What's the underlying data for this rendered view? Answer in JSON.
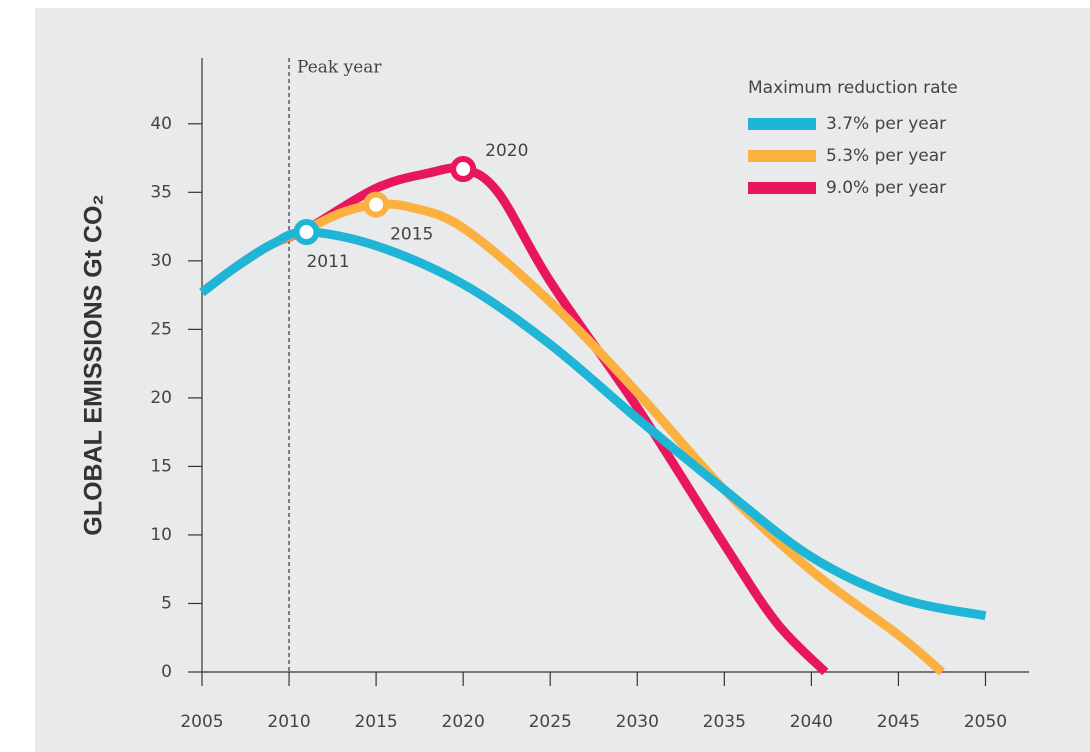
{
  "chart_data": {
    "type": "line",
    "y_label": "GLOBAL EMISSIONS Gt CO₂",
    "legend_title": "Maximum reduction rate",
    "legend": "top-right",
    "xlim": [
      2005,
      2052.5
    ],
    "ylim": [
      0,
      44.8
    ],
    "xticks": [
      2005,
      2010,
      2015,
      2020,
      2025,
      2030,
      2035,
      2040,
      2045,
      2050
    ],
    "yticks": [
      0,
      5,
      10,
      15,
      20,
      25,
      30,
      35,
      40
    ],
    "peak_line": {
      "x": 2010,
      "label": "Peak year"
    },
    "series": [
      {
        "name": "9.0% per year",
        "color": "#e8175d",
        "x": [
          2005,
          2007,
          2009,
          2011,
          2015,
          2018,
          2020,
          2022,
          2025,
          2030,
          2035,
          2038,
          2040.8
        ],
        "values": [
          27.7,
          29.6,
          31.2,
          32.3,
          35.3,
          36.4,
          36.7,
          35,
          28.5,
          19.3,
          9.3,
          3.6,
          0
        ]
      },
      {
        "name": "5.3% per year",
        "color": "#fbb040",
        "x": [
          2005,
          2007,
          2009,
          2011,
          2013,
          2015,
          2017,
          2020,
          2025,
          2030,
          2035,
          2040,
          2045,
          2047.5
        ],
        "values": [
          27.7,
          29.6,
          31.2,
          32.3,
          33.5,
          34.1,
          33.9,
          32.4,
          27,
          20.4,
          13.3,
          7.4,
          2.7,
          0
        ]
      },
      {
        "name": "3.7% per year",
        "color": "#1fb5d6",
        "x": [
          2005,
          2007,
          2009,
          2011,
          2015,
          2020,
          2025,
          2030,
          2035,
          2040,
          2045,
          2050
        ],
        "values": [
          27.7,
          29.6,
          31.2,
          32.1,
          31.1,
          28.3,
          23.9,
          18.5,
          13.3,
          8.4,
          5.4,
          4.1
        ]
      }
    ],
    "annotations": [
      {
        "text": "2011",
        "x": 2011,
        "y": 32.1,
        "color": "#1fb5d6"
      },
      {
        "text": "2015",
        "x": 2015,
        "y": 34.1,
        "color": "#fbb040"
      },
      {
        "text": "2020",
        "x": 2020,
        "y": 36.7,
        "color": "#e8175d"
      }
    ]
  }
}
